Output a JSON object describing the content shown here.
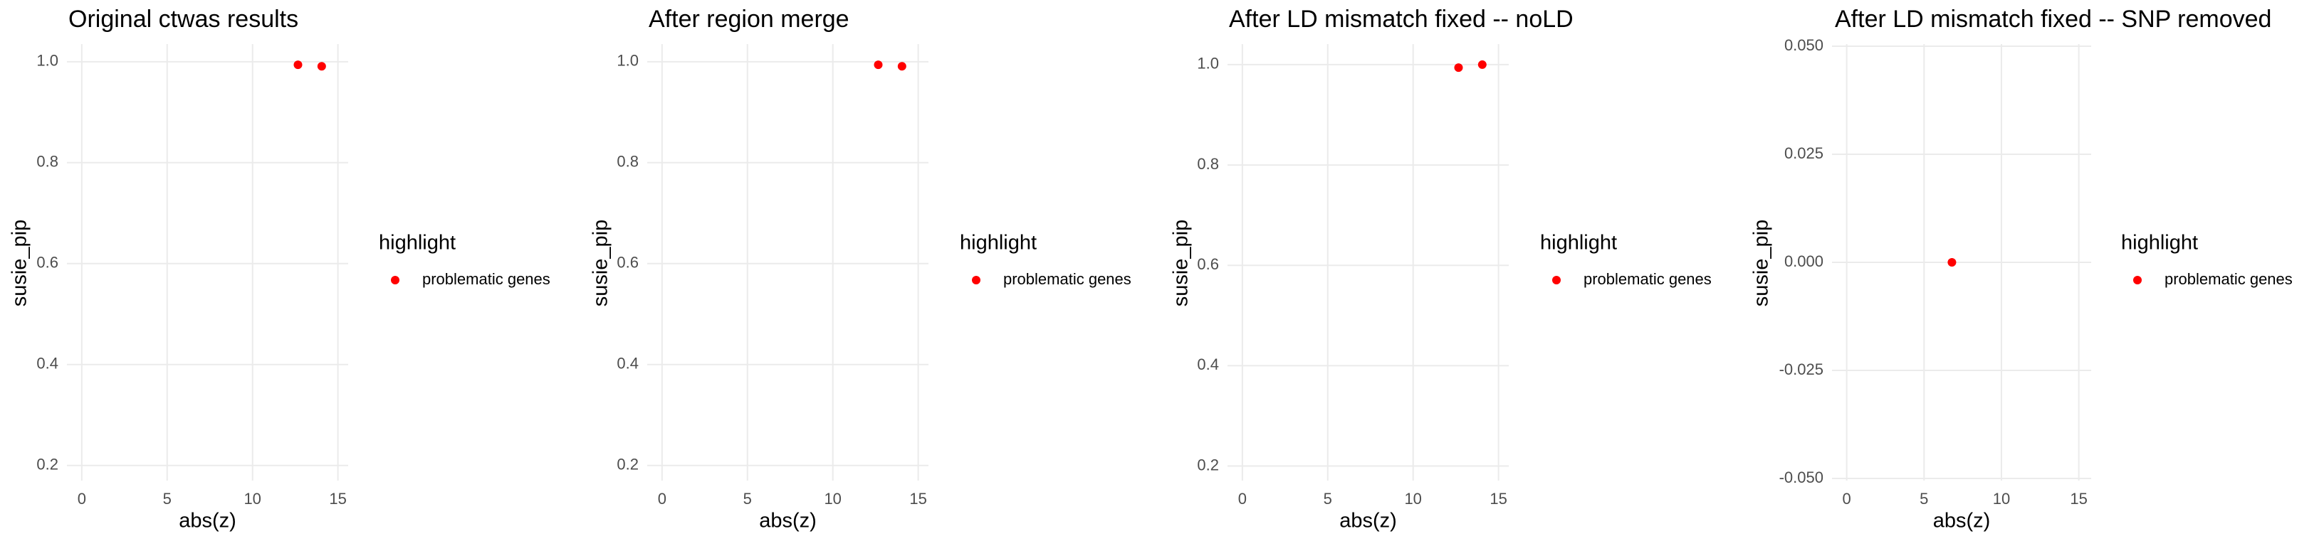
{
  "chart_data": [
    {
      "type": "scatter",
      "title": "Original ctwas results",
      "x_label": "abs(z)",
      "y_label": "susie_pip",
      "legend_title": "highlight",
      "series": [
        {
          "name": "problematic genes",
          "color": "#ff0000",
          "x": [
            12.66,
            14.05
          ],
          "values": [
            0.994,
            0.991
          ]
        }
      ],
      "xlim": [
        -0.87,
        15.6
      ],
      "ylim": [
        0.17,
        1.035
      ],
      "xticks": [
        0,
        5,
        10,
        15
      ],
      "yticks": [
        0.2,
        0.4,
        0.6,
        0.8,
        {
          "value": 1,
          "label": "1.0"
        }
      ],
      "grid": true
    },
    {
      "type": "scatter",
      "title": "After region merge",
      "x_label": "abs(z)",
      "y_label": "susie_pip",
      "legend_title": "highlight",
      "series": [
        {
          "name": "problematic genes",
          "color": "#ff0000",
          "x": [
            12.66,
            14.05
          ],
          "values": [
            0.994,
            0.991
          ]
        }
      ],
      "xlim": [
        -0.87,
        15.6
      ],
      "ylim": [
        0.17,
        1.035
      ],
      "xticks": [
        0,
        5,
        10,
        15
      ],
      "yticks": [
        0.2,
        0.4,
        0.6,
        0.8,
        {
          "value": 1,
          "label": "1.0"
        }
      ],
      "grid": true
    },
    {
      "type": "scatter",
      "title": "After LD mismatch fixed -- noLD",
      "x_label": "abs(z)",
      "y_label": "susie_pip",
      "legend_title": "highlight",
      "series": [
        {
          "name": "problematic genes",
          "color": "#ff0000",
          "x": [
            12.66,
            14.05
          ],
          "values": [
            0.994,
            1.0
          ]
        }
      ],
      "xlim": [
        -0.87,
        15.6
      ],
      "ylim": [
        0.171,
        1.041
      ],
      "xticks": [
        0,
        5,
        10,
        15
      ],
      "yticks": [
        0.2,
        0.4,
        0.6,
        0.8,
        {
          "value": 1,
          "label": "1.0"
        }
      ],
      "grid": true
    },
    {
      "type": "scatter",
      "title": "After LD mismatch fixed -- SNP removed",
      "x_label": "abs(z)",
      "y_label": "susie_pip",
      "legend_title": "highlight",
      "series": [
        {
          "name": "problematic genes",
          "color": "#ff0000",
          "x": [
            6.8
          ],
          "values": [
            0
          ]
        }
      ],
      "xlim": [
        -0.95,
        15.8
      ],
      "ylim": [
        -0.0505,
        0.0505
      ],
      "xticks": [
        0,
        5,
        10,
        15
      ],
      "yticks": [
        {
          "value": -0.05,
          "label": "-0.050"
        },
        {
          "value": -0.025,
          "label": "-0.025"
        },
        {
          "value": 0,
          "label": "0.000"
        },
        {
          "value": 0.025,
          "label": "0.025"
        },
        {
          "value": 0.05,
          "label": "0.050"
        }
      ],
      "grid": true
    }
  ]
}
